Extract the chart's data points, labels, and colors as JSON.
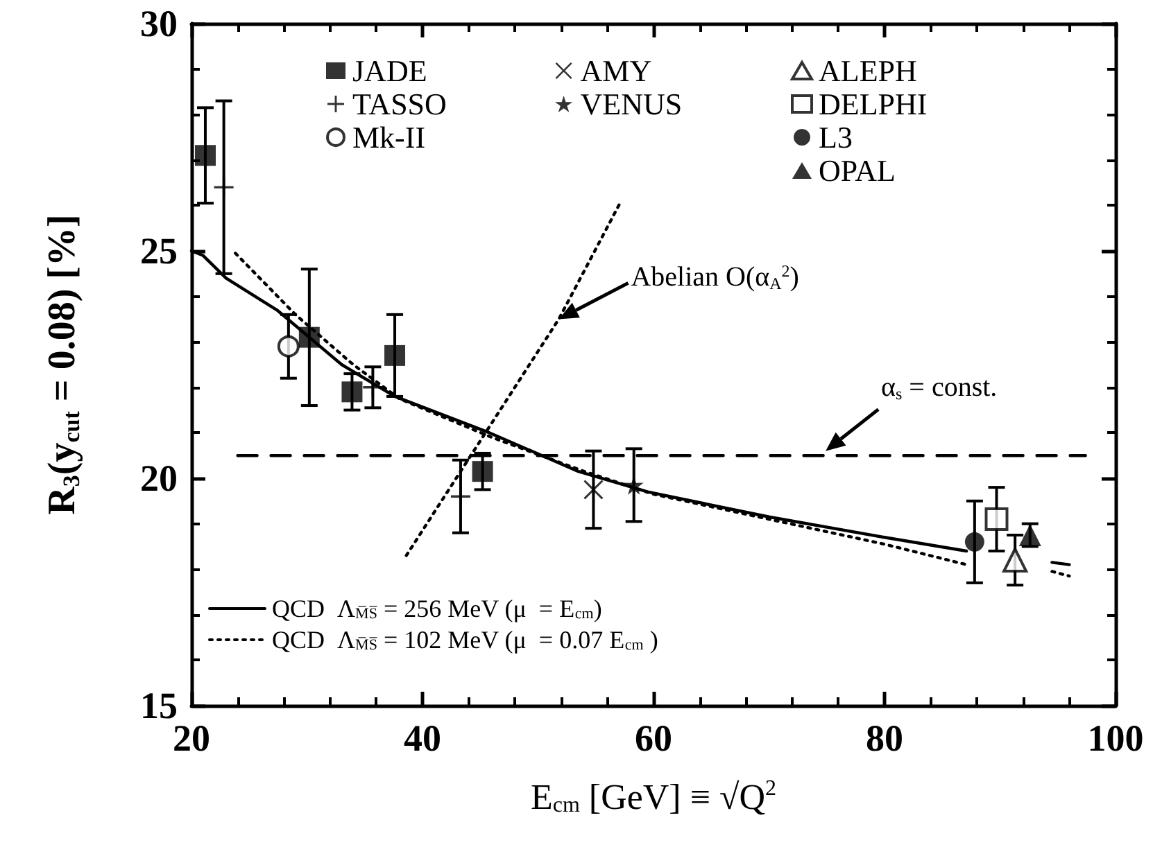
{
  "chart_data": {
    "type": "scatter",
    "xlabel": "E$_{cm}$ [GeV] ≡ √Q$^{2}$",
    "ylabel": "R$_{3}$(y$_{cut}$ = 0.08) [%]",
    "xlim": [
      20,
      100
    ],
    "xticks": [
      20,
      40,
      60,
      80,
      100
    ],
    "ylim": [
      15,
      30
    ],
    "yticks": [
      15,
      20,
      25,
      30
    ],
    "legend": "top",
    "series": [
      {
        "name": "JADE",
        "marker": "square",
        "color": "#000000",
        "x": [
          21.2,
          30.2,
          33.9,
          37.6,
          45.2
        ],
        "values": [
          27.1,
          23.1,
          21.9,
          22.7,
          20.15
        ],
        "errors": [
          1.05,
          1.5,
          0.4,
          0.9,
          0.4
        ]
      },
      {
        "name": "TASSO",
        "marker": "plus",
        "color": "#000000",
        "x": [
          22.8,
          35.7,
          43.3
        ],
        "values": [
          26.4,
          22.0,
          19.6
        ],
        "errors": [
          1.9,
          0.45,
          0.8
        ]
      },
      {
        "name": "Mk-II",
        "marker": "circle",
        "color": "#ffffff",
        "x": [
          28.4
        ],
        "values": [
          22.9
        ],
        "errors": [
          0.7
        ]
      },
      {
        "name": "AMY",
        "marker": "cross",
        "color": "#000000",
        "x": [
          54.8
        ],
        "values": [
          19.75
        ],
        "errors": [
          0.85
        ]
      },
      {
        "name": "VENUS",
        "marker": "star",
        "color": "#000000",
        "x": [
          58.3
        ],
        "values": [
          19.85
        ],
        "errors": [
          0.8
        ]
      },
      {
        "name": "ALEPH",
        "marker": "triangle",
        "color": "#ffffff",
        "x": [
          91.3
        ],
        "values": [
          18.2
        ],
        "errors": [
          0.55
        ]
      },
      {
        "name": "DELPHI",
        "marker": "square",
        "color": "#ffffff",
        "x": [
          89.7
        ],
        "values": [
          19.1
        ],
        "errors": [
          0.7
        ]
      },
      {
        "name": "L3",
        "marker": "circle",
        "color": "#000000",
        "x": [
          87.8
        ],
        "values": [
          18.6
        ],
        "errors": [
          0.9
        ]
      },
      {
        "name": "OPAL",
        "marker": "triangle",
        "color": "#000000",
        "x": [
          92.6
        ],
        "values": [
          18.75
        ],
        "errors": [
          0.25
        ]
      },
      {
        "name": "QCD  Λ$_{M̅S̅}$ = 256 MeV (μ  = E$_{cm}$)",
        "type": "line",
        "line_style": "solid",
        "color": "#000000",
        "x": [
          20,
          21,
          23,
          27.4,
          33,
          37.6,
          45.8,
          53.5,
          59.5,
          70,
          80,
          87.1,
          90,
          94.5,
          96
        ],
        "values": [
          25.0,
          24.9,
          24.4,
          23.7,
          22.5,
          21.8,
          21.0,
          20.15,
          19.7,
          19.15,
          18.7,
          18.4,
          null,
          18.15,
          18.1
        ]
      },
      {
        "name": "QCD  Λ$_{M̅S̅}$ = 102 MeV (μ  = 0.07 E$_{cm}$ )",
        "type": "line",
        "line_style": "dotted",
        "color": "#000000",
        "x": [
          23.8,
          29,
          34,
          38,
          46,
          54,
          60,
          70,
          80,
          87.1,
          90,
          94.5,
          96
        ],
        "values": [
          24.95,
          23.6,
          22.5,
          21.75,
          20.9,
          20.15,
          19.65,
          19.1,
          18.55,
          18.1,
          null,
          17.95,
          17.85
        ]
      },
      {
        "type": "line",
        "line_style": "dotted",
        "color": "#000000",
        "x": [
          38.6,
          51.8,
          57.2
        ],
        "values": [
          18.3,
          23.5,
          26.1
        ]
      },
      {
        "type": "line",
        "line_style": "dashed",
        "color": "#000000",
        "x": [
          24,
          97.4
        ],
        "values": [
          20.5,
          20.5
        ]
      }
    ],
    "annotations": [
      {
        "text": "Abelian O(α$_{A}$$^{2}$)",
        "x": 51.8,
        "y": 23.5
      },
      {
        "text": "α$_{s}$ = const.",
        "x": 74.9,
        "y": 20.6
      }
    ]
  }
}
